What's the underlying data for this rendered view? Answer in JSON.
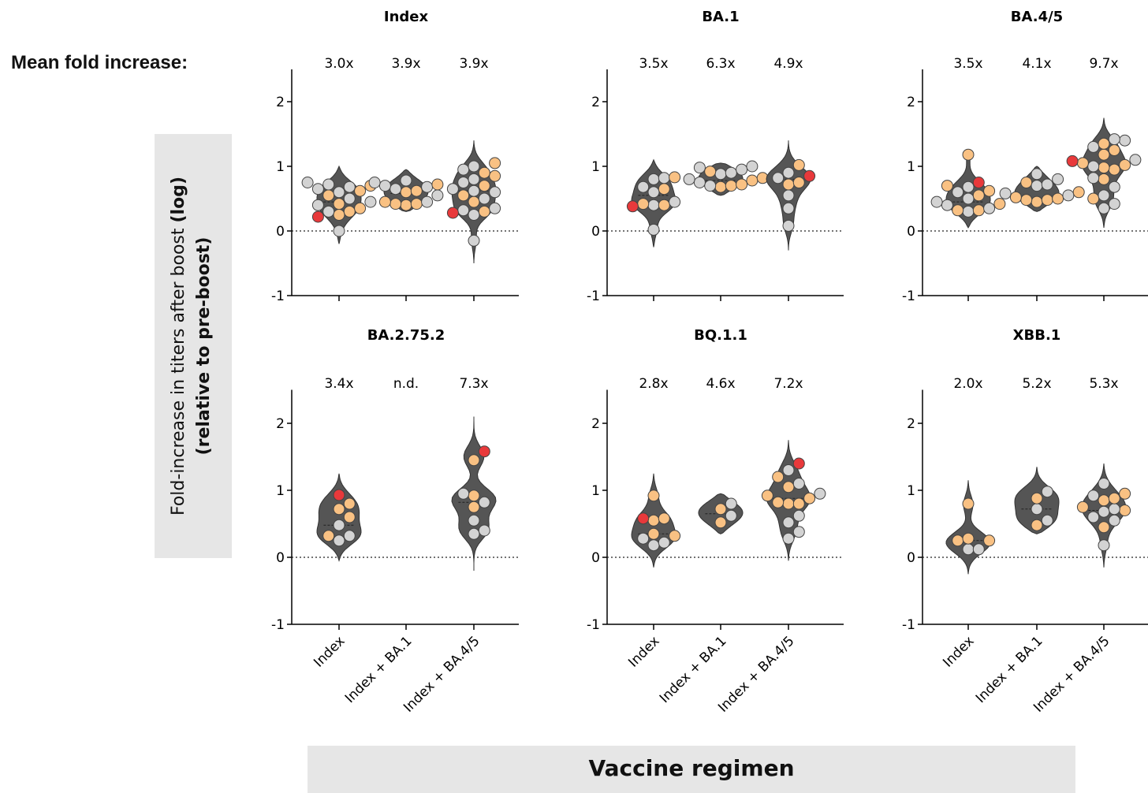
{
  "header": {
    "mean_label": "Mean fold increase:"
  },
  "axes": {
    "ylabel_line1": "Fold-increase in titers after boost",
    "ylabel_line1_bold": "(log)",
    "ylabel_line2": "(relative to pre-boost)",
    "xlabel": "Vaccine regimen"
  },
  "chart_data": {
    "type": "violin",
    "categories": [
      "Index",
      "Index + BA.1",
      "Index + BA.4/5"
    ],
    "ylim": [
      -1,
      2.5
    ],
    "yticks": [
      -1,
      0,
      1,
      2
    ],
    "reference_line": 0,
    "colors": {
      "violin": "#555555",
      "grey_point": "#d3d3d3",
      "orange_point": "#f9c183",
      "red_point": "#e8393b"
    },
    "panels": [
      {
        "title": "Index",
        "labels": [
          "3.0x",
          "3.9x",
          "3.9x"
        ],
        "groups": [
          {
            "min": -0.2,
            "max": 1.0,
            "median": 0.45,
            "points": [
              [
                0.0,
                "g"
              ],
              [
                0.22,
                "r"
              ],
              [
                0.25,
                "o"
              ],
              [
                0.3,
                "o"
              ],
              [
                0.3,
                "g"
              ],
              [
                0.35,
                "o"
              ],
              [
                0.4,
                "g"
              ],
              [
                0.42,
                "o"
              ],
              [
                0.45,
                "g"
              ],
              [
                0.5,
                "g"
              ],
              [
                0.55,
                "o"
              ],
              [
                0.6,
                "g"
              ],
              [
                0.62,
                "o"
              ],
              [
                0.65,
                "g"
              ],
              [
                0.68,
                "g"
              ],
              [
                0.7,
                "o"
              ],
              [
                0.72,
                "g"
              ],
              [
                0.75,
                "g"
              ]
            ]
          },
          {
            "min": 0.3,
            "max": 0.95,
            "median": 0.58,
            "points": [
              [
                0.4,
                "o"
              ],
              [
                0.42,
                "o"
              ],
              [
                0.42,
                "o"
              ],
              [
                0.45,
                "g"
              ],
              [
                0.45,
                "o"
              ],
              [
                0.55,
                "g"
              ],
              [
                0.6,
                "o"
              ],
              [
                0.62,
                "o"
              ],
              [
                0.65,
                "g"
              ],
              [
                0.68,
                "g"
              ],
              [
                0.7,
                "g"
              ],
              [
                0.72,
                "o"
              ],
              [
                0.75,
                "g"
              ],
              [
                0.78,
                "g"
              ]
            ]
          },
          {
            "min": -0.5,
            "max": 1.4,
            "median": 0.62,
            "points": [
              [
                -0.15,
                "g"
              ],
              [
                0.25,
                "g"
              ],
              [
                0.28,
                "r"
              ],
              [
                0.3,
                "o"
              ],
              [
                0.32,
                "g"
              ],
              [
                0.35,
                "g"
              ],
              [
                0.45,
                "o"
              ],
              [
                0.5,
                "g"
              ],
              [
                0.55,
                "o"
              ],
              [
                0.6,
                "g"
              ],
              [
                0.62,
                "g"
              ],
              [
                0.65,
                "g"
              ],
              [
                0.7,
                "o"
              ],
              [
                0.75,
                "g"
              ],
              [
                0.8,
                "g"
              ],
              [
                0.85,
                "o"
              ],
              [
                0.9,
                "o"
              ],
              [
                0.95,
                "g"
              ],
              [
                1.0,
                "g"
              ],
              [
                1.05,
                "o"
              ]
            ]
          }
        ]
      },
      {
        "title": "BA.1",
        "labels": [
          "3.5x",
          "6.3x",
          "4.9x"
        ],
        "groups": [
          {
            "min": -0.25,
            "max": 1.1,
            "median": 0.55,
            "points": [
              [
                0.02,
                "g"
              ],
              [
                0.38,
                "r"
              ],
              [
                0.4,
                "g"
              ],
              [
                0.4,
                "o"
              ],
              [
                0.42,
                "o"
              ],
              [
                0.45,
                "g"
              ],
              [
                0.6,
                "g"
              ],
              [
                0.65,
                "o"
              ],
              [
                0.68,
                "g"
              ],
              [
                0.8,
                "g"
              ],
              [
                0.82,
                "g"
              ],
              [
                0.83,
                "o"
              ]
            ]
          },
          {
            "min": 0.55,
            "max": 1.05,
            "median": 0.78,
            "points": [
              [
                0.68,
                "o"
              ],
              [
                0.7,
                "o"
              ],
              [
                0.7,
                "g"
              ],
              [
                0.72,
                "o"
              ],
              [
                0.75,
                "g"
              ],
              [
                0.78,
                "o"
              ],
              [
                0.8,
                "g"
              ],
              [
                0.82,
                "o"
              ],
              [
                0.88,
                "g"
              ],
              [
                0.9,
                "g"
              ],
              [
                0.92,
                "o"
              ],
              [
                0.95,
                "g"
              ],
              [
                0.98,
                "g"
              ],
              [
                1.0,
                "g"
              ]
            ]
          },
          {
            "min": -0.3,
            "max": 1.4,
            "median": 0.8,
            "points": [
              [
                0.08,
                "g"
              ],
              [
                0.35,
                "g"
              ],
              [
                0.55,
                "g"
              ],
              [
                0.72,
                "o"
              ],
              [
                0.75,
                "o"
              ],
              [
                0.82,
                "g"
              ],
              [
                0.85,
                "r"
              ],
              [
                0.9,
                "g"
              ],
              [
                1.02,
                "o"
              ]
            ]
          }
        ]
      },
      {
        "title": "BA.4/5",
        "labels": [
          "3.5x",
          "4.1x",
          "9.7x"
        ],
        "groups": [
          {
            "min": 0.05,
            "max": 1.25,
            "median": 0.45,
            "points": [
              [
                0.3,
                "g"
              ],
              [
                0.32,
                "o"
              ],
              [
                0.32,
                "o"
              ],
              [
                0.35,
                "g"
              ],
              [
                0.4,
                "g"
              ],
              [
                0.42,
                "o"
              ],
              [
                0.45,
                "g"
              ],
              [
                0.5,
                "g"
              ],
              [
                0.55,
                "o"
              ],
              [
                0.6,
                "g"
              ],
              [
                0.62,
                "o"
              ],
              [
                0.68,
                "g"
              ],
              [
                0.7,
                "o"
              ],
              [
                0.75,
                "r"
              ],
              [
                1.18,
                "o"
              ]
            ]
          },
          {
            "min": 0.3,
            "max": 1.0,
            "median": 0.5,
            "points": [
              [
                0.45,
                "o"
              ],
              [
                0.48,
                "o"
              ],
              [
                0.48,
                "o"
              ],
              [
                0.5,
                "o"
              ],
              [
                0.52,
                "o"
              ],
              [
                0.55,
                "g"
              ],
              [
                0.58,
                "g"
              ],
              [
                0.6,
                "o"
              ],
              [
                0.7,
                "g"
              ],
              [
                0.72,
                "g"
              ],
              [
                0.75,
                "o"
              ],
              [
                0.8,
                "g"
              ],
              [
                0.88,
                "g"
              ]
            ]
          },
          {
            "min": 0.05,
            "max": 1.75,
            "median": 1.0,
            "points": [
              [
                0.35,
                "g"
              ],
              [
                0.42,
                "g"
              ],
              [
                0.5,
                "o"
              ],
              [
                0.55,
                "g"
              ],
              [
                0.68,
                "g"
              ],
              [
                0.8,
                "o"
              ],
              [
                0.82,
                "g"
              ],
              [
                0.95,
                "o"
              ],
              [
                0.98,
                "o"
              ],
              [
                1.0,
                "g"
              ],
              [
                1.02,
                "o"
              ],
              [
                1.05,
                "o"
              ],
              [
                1.08,
                "r"
              ],
              [
                1.1,
                "g"
              ],
              [
                1.18,
                "o"
              ],
              [
                1.25,
                "o"
              ],
              [
                1.3,
                "g"
              ],
              [
                1.35,
                "o"
              ],
              [
                1.4,
                "g"
              ],
              [
                1.42,
                "g"
              ]
            ]
          }
        ]
      },
      {
        "title": "BA.2.75.2",
        "labels": [
          "3.4x",
          "n.d.",
          "7.3x"
        ],
        "groups": [
          {
            "min": -0.05,
            "max": 1.25,
            "median": 0.48,
            "points": [
              [
                0.25,
                "g"
              ],
              [
                0.32,
                "g"
              ],
              [
                0.32,
                "o"
              ],
              [
                0.48,
                "g"
              ],
              [
                0.6,
                "o"
              ],
              [
                0.72,
                "o"
              ],
              [
                0.8,
                "o"
              ],
              [
                0.93,
                "r"
              ]
            ]
          },
          null,
          {
            "min": -0.2,
            "max": 2.1,
            "median": 0.82,
            "points": [
              [
                0.35,
                "g"
              ],
              [
                0.4,
                "g"
              ],
              [
                0.55,
                "g"
              ],
              [
                0.75,
                "o"
              ],
              [
                0.82,
                "g"
              ],
              [
                0.92,
                "o"
              ],
              [
                0.95,
                "g"
              ],
              [
                1.45,
                "o"
              ],
              [
                1.58,
                "r"
              ]
            ]
          }
        ]
      },
      {
        "title": "BQ.1.1",
        "labels": [
          "2.8x",
          "4.6x",
          "7.2x"
        ],
        "groups": [
          {
            "min": -0.15,
            "max": 1.25,
            "median": 0.35,
            "points": [
              [
                0.18,
                "g"
              ],
              [
                0.22,
                "g"
              ],
              [
                0.28,
                "g"
              ],
              [
                0.32,
                "o"
              ],
              [
                0.35,
                "o"
              ],
              [
                0.55,
                "o"
              ],
              [
                0.58,
                "o"
              ],
              [
                0.58,
                "r"
              ],
              [
                0.92,
                "o"
              ]
            ]
          },
          {
            "min": 0.35,
            "max": 0.95,
            "median": 0.65,
            "points": [
              [
                0.52,
                "o"
              ],
              [
                0.62,
                "g"
              ],
              [
                0.72,
                "o"
              ],
              [
                0.8,
                "g"
              ]
            ]
          },
          {
            "min": -0.05,
            "max": 1.75,
            "median": 0.88,
            "points": [
              [
                0.28,
                "g"
              ],
              [
                0.38,
                "g"
              ],
              [
                0.52,
                "g"
              ],
              [
                0.62,
                "g"
              ],
              [
                0.8,
                "o"
              ],
              [
                0.8,
                "o"
              ],
              [
                0.82,
                "o"
              ],
              [
                0.88,
                "o"
              ],
              [
                0.92,
                "o"
              ],
              [
                0.95,
                "g"
              ],
              [
                1.05,
                "o"
              ],
              [
                1.1,
                "g"
              ],
              [
                1.2,
                "o"
              ],
              [
                1.3,
                "g"
              ],
              [
                1.4,
                "r"
              ]
            ]
          }
        ]
      },
      {
        "title": "XBB.1",
        "labels": [
          "2.0x",
          "5.2x",
          "5.3x"
        ],
        "groups": [
          {
            "min": -0.25,
            "max": 1.15,
            "median": 0.25,
            "points": [
              [
                0.12,
                "g"
              ],
              [
                0.12,
                "g"
              ],
              [
                0.25,
                "o"
              ],
              [
                0.25,
                "o"
              ],
              [
                0.28,
                "o"
              ],
              [
                0.8,
                "o"
              ]
            ]
          },
          {
            "min": 0.35,
            "max": 1.35,
            "median": 0.72,
            "points": [
              [
                0.48,
                "o"
              ],
              [
                0.55,
                "g"
              ],
              [
                0.72,
                "g"
              ],
              [
                0.88,
                "o"
              ],
              [
                0.98,
                "g"
              ]
            ]
          },
          {
            "min": -0.15,
            "max": 1.4,
            "median": 0.7,
            "points": [
              [
                0.18,
                "g"
              ],
              [
                0.45,
                "o"
              ],
              [
                0.55,
                "g"
              ],
              [
                0.6,
                "g"
              ],
              [
                0.68,
                "g"
              ],
              [
                0.7,
                "o"
              ],
              [
                0.72,
                "g"
              ],
              [
                0.75,
                "o"
              ],
              [
                0.85,
                "o"
              ],
              [
                0.88,
                "o"
              ],
              [
                0.92,
                "g"
              ],
              [
                0.95,
                "o"
              ],
              [
                1.1,
                "g"
              ]
            ]
          }
        ]
      }
    ]
  }
}
